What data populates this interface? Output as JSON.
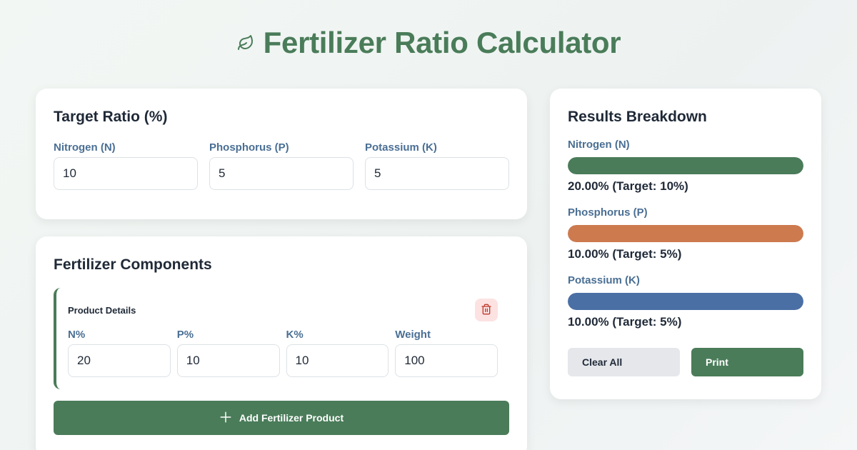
{
  "header": {
    "title": "Fertilizer Ratio Calculator",
    "icon": "leaf-icon"
  },
  "target": {
    "title": "Target Ratio (%)",
    "fields": [
      {
        "label": "Nitrogen (N)",
        "value": "10"
      },
      {
        "label": "Phosphorus (P)",
        "value": "5"
      },
      {
        "label": "Potassium (K)",
        "value": "5"
      }
    ]
  },
  "components": {
    "title": "Fertilizer Components",
    "product": {
      "title": "Product Details",
      "delete_icon": "trash-icon",
      "fields": [
        {
          "label": "N%",
          "value": "20"
        },
        {
          "label": "P%",
          "value": "10"
        },
        {
          "label": "K%",
          "value": "10"
        },
        {
          "label": "Weight",
          "value": "100"
        }
      ]
    },
    "add_label": "Add Fertilizer Product",
    "add_icon": "plus-icon"
  },
  "results": {
    "title": "Results Breakdown",
    "items": [
      {
        "label": "Nitrogen (N)",
        "text": "20.00% (Target: 10%)",
        "fill_percent": 100,
        "color": "#4a7c59"
      },
      {
        "label": "Phosphorus (P)",
        "text": "10.00% (Target: 5%)",
        "fill_percent": 100,
        "color": "#cd7a4f"
      },
      {
        "label": "Potassium (K)",
        "text": "10.00% (Target: 5%)",
        "fill_percent": 100,
        "color": "#4a6fa5"
      }
    ],
    "clear_label": "Clear All",
    "print_label": "Print"
  },
  "colors": {
    "primary": "#4a7c59",
    "label": "#4a6f94",
    "danger_bg": "#fde2e2",
    "danger": "#c0392b"
  }
}
